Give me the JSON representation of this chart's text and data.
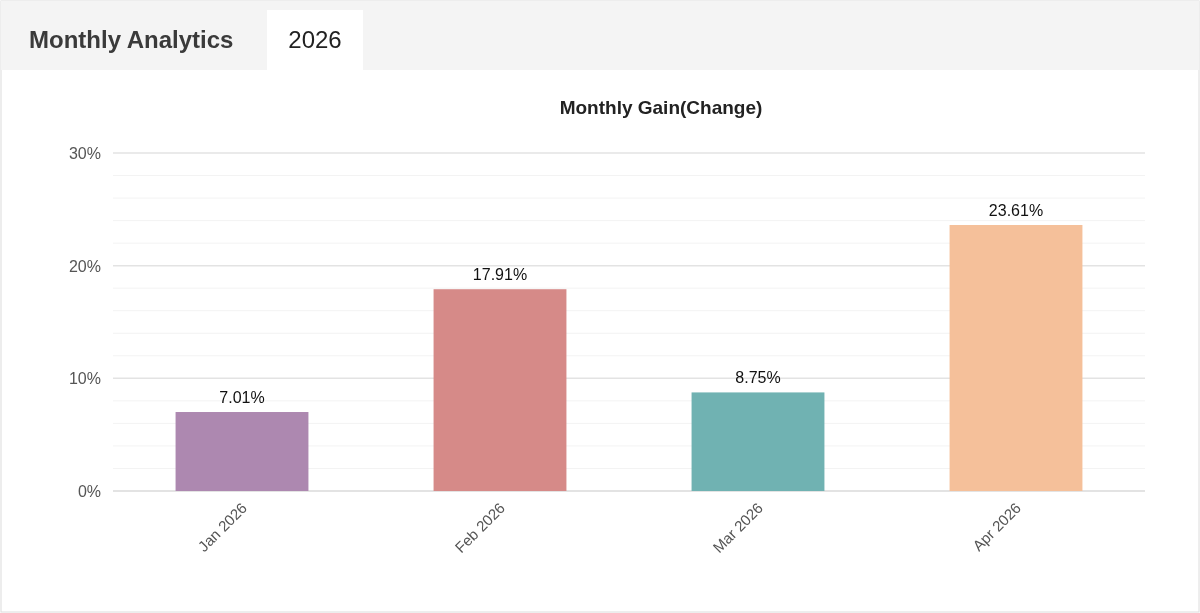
{
  "chart_data": {
    "type": "bar",
    "title": "Monthly Gain(Change)",
    "annotations": [
      "Monthly Analytics",
      "2026"
    ],
    "categories": [
      "Jan 2026",
      "Feb 2026",
      "Mar 2026",
      "Apr 2026"
    ],
    "values": [
      7.01,
      17.91,
      8.75,
      23.61
    ],
    "colors": [
      "#ad88b0",
      "#d68a88",
      "#70b2b2",
      "#f5c09a"
    ],
    "value_labels": [
      "7.01%",
      "17.91%",
      "8.75%",
      "23.61%"
    ],
    "ylim": [
      0,
      30
    ],
    "yticks": [
      {
        "value": 0,
        "label": "0%"
      },
      {
        "value": 2,
        "label": null
      },
      {
        "value": 4,
        "label": null
      },
      {
        "value": 6,
        "label": null
      },
      {
        "value": 8,
        "label": null
      },
      {
        "value": 10,
        "label": "10%"
      },
      {
        "value": 12,
        "label": null
      },
      {
        "value": 14,
        "label": null
      },
      {
        "value": 16,
        "label": null
      },
      {
        "value": 18,
        "label": null
      },
      {
        "value": 20,
        "label": "20%"
      },
      {
        "value": 22,
        "label": null
      },
      {
        "value": 24,
        "label": null
      },
      {
        "value": 26,
        "label": null
      },
      {
        "value": 28,
        "label": null
      },
      {
        "value": 30,
        "label": "30%"
      }
    ],
    "grid": "y"
  }
}
